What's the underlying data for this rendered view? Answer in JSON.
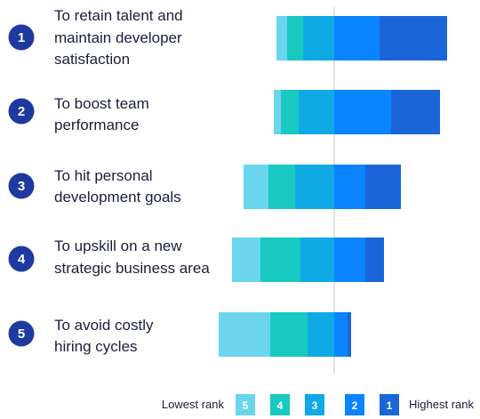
{
  "chart_data": {
    "type": "bar",
    "orientation": "horizontal",
    "stacked": "diverging",
    "categories": [
      {
        "number": "1",
        "label_lines": [
          "To retain talent and",
          "maintain developer",
          "satisfaction"
        ]
      },
      {
        "number": "2",
        "label_lines": [
          "To boost team",
          "performance"
        ]
      },
      {
        "number": "3",
        "label_lines": [
          "To hit personal",
          "development goals"
        ]
      },
      {
        "number": "4",
        "label_lines": [
          "To upskill on a new",
          "strategic business area"
        ]
      },
      {
        "number": "5",
        "label_lines": [
          "To avoid costly",
          "hiring cycles"
        ]
      }
    ],
    "series": [
      {
        "name": "5",
        "color": "#6cd5ee",
        "side": "left",
        "values": [
          12,
          8,
          28,
          32,
          58
        ]
      },
      {
        "name": "4",
        "color": "#17c9c0",
        "side": "left",
        "values": [
          18,
          20,
          30,
          45,
          42
        ]
      },
      {
        "name": "3",
        "color": "#0fa9e6",
        "side": "left",
        "values": [
          35,
          40,
          44,
          38,
          30
        ]
      },
      {
        "name": "2",
        "color": "#0a84ff",
        "side": "right",
        "values": [
          51,
          64,
          35,
          35,
          15
        ]
      },
      {
        "name": "1",
        "color": "#1a66d8",
        "side": "right",
        "values": [
          76,
          55,
          40,
          21,
          4
        ]
      }
    ],
    "marker_color": "#1e3aa0",
    "divider_color": "#c0c4cc",
    "legend": {
      "position": "bottom",
      "low_label": "Lowest rank",
      "high_label": "Highest rank",
      "order": [
        "5",
        "4",
        "3",
        "2",
        "1"
      ]
    }
  }
}
